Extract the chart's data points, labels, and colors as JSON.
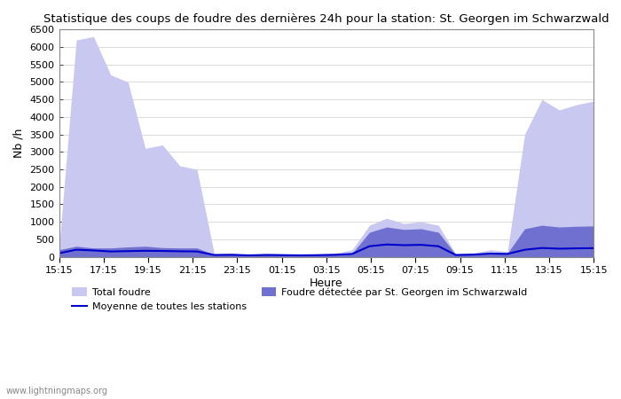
{
  "title": "Statistique des coups de foudre des dernières 24h pour la station: St. Georgen im Schwarzwald",
  "ylabel": "Nb /h",
  "xlabel": "Heure",
  "watermark": "www.lightningmaps.org",
  "ylim": [
    0,
    6500
  ],
  "yticks": [
    0,
    500,
    1000,
    1500,
    2000,
    2500,
    3000,
    3500,
    4000,
    4500,
    5000,
    5500,
    6000,
    6500
  ],
  "xtick_labels": [
    "15:15",
    "17:15",
    "19:15",
    "21:15",
    "23:15",
    "01:15",
    "03:15",
    "05:15",
    "07:15",
    "09:15",
    "11:15",
    "13:15",
    "15:15"
  ],
  "bg_color": "#ffffff",
  "fill_total_color": "#c8c8f0",
  "fill_local_color": "#7070d0",
  "line_mean_color": "#0000cc",
  "total_foudre": [
    250,
    6200,
    6300,
    5200,
    5000,
    3100,
    3200,
    2600,
    2500,
    80,
    100,
    50,
    100,
    80,
    60,
    80,
    100,
    200,
    900,
    1100,
    950,
    1000,
    900,
    80,
    100,
    200,
    150,
    3500,
    4500,
    4200,
    4350,
    4450
  ],
  "local_foudre": [
    200,
    300,
    250,
    250,
    280,
    300,
    260,
    250,
    250,
    60,
    70,
    40,
    60,
    50,
    40,
    50,
    60,
    100,
    700,
    850,
    780,
    800,
    700,
    60,
    70,
    120,
    100,
    800,
    900,
    850,
    870,
    880
  ],
  "mean_foudre": [
    100,
    200,
    180,
    150,
    160,
    170,
    165,
    155,
    150,
    50,
    55,
    40,
    50,
    45,
    40,
    45,
    55,
    80,
    300,
    350,
    330,
    340,
    300,
    50,
    60,
    90,
    80,
    200,
    250,
    230,
    240,
    245
  ],
  "n_points": 32,
  "legend_total": "Total foudre",
  "legend_mean": "Moyenne de toutes les stations",
  "legend_local": "Foudre détectée par St. Georgen im Schwarzwald"
}
